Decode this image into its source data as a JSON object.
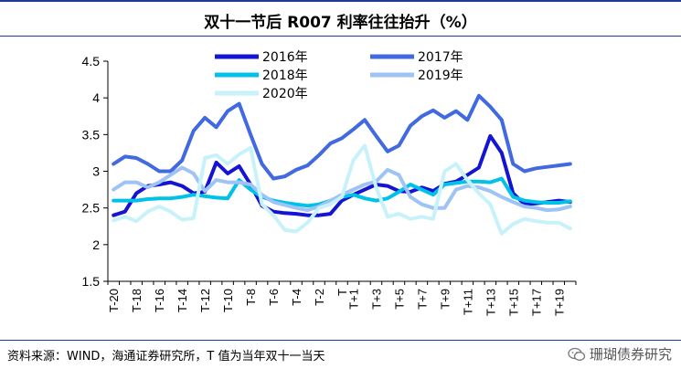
{
  "title": "双十一节后 R007 利率往往抬升（%）",
  "source": "资料来源：WIND，海通证券研究所，T 值为当年双十一当天",
  "watermark": "珊瑚债券研究",
  "chart_data": {
    "type": "line",
    "title": "双十一节后 R007 利率往往抬升（%）",
    "ylim": [
      1.5,
      4.5
    ],
    "yticks": [
      "1.5",
      "2",
      "2.5",
      "3",
      "3.5",
      "4",
      "4.5"
    ],
    "categories": [
      "T-20",
      "T-19",
      "T-18",
      "T-17",
      "T-16",
      "T-15",
      "T-14",
      "T-13",
      "T-12",
      "T-11",
      "T-10",
      "T-9",
      "T-8",
      "T-7",
      "T-6",
      "T-5",
      "T-4",
      "T-3",
      "T-2",
      "T-1",
      "T",
      "T+1",
      "T+2",
      "T+3",
      "T+4",
      "T+5",
      "T+6",
      "T+7",
      "T+8",
      "T+9",
      "T+10",
      "T+11",
      "T+12",
      "T+13",
      "T+14",
      "T+15",
      "T+16",
      "T+17",
      "T+18",
      "T+19",
      "T+20"
    ],
    "xtick_labels": [
      "T-20",
      "T-18",
      "T-16",
      "T-14",
      "T-12",
      "T-10",
      "T-8",
      "T-6",
      "T-4",
      "T-2",
      "T",
      "T+1",
      "T+3",
      "T+5",
      "T+7",
      "T+9",
      "T+11",
      "T+13",
      "T+15",
      "T+17",
      "T+19"
    ],
    "series": [
      {
        "name": "2016年",
        "color": "#1414d2",
        "width": 4,
        "values": [
          2.4,
          2.45,
          2.7,
          2.8,
          2.82,
          2.85,
          2.8,
          2.7,
          2.72,
          3.12,
          2.97,
          3.07,
          2.82,
          2.53,
          2.45,
          2.43,
          2.42,
          2.4,
          2.4,
          2.42,
          2.6,
          2.68,
          2.75,
          2.82,
          2.8,
          2.73,
          2.72,
          2.78,
          2.73,
          2.83,
          2.86,
          2.95,
          3.05,
          3.48,
          3.25,
          2.7,
          2.55,
          2.56,
          2.58,
          2.6,
          2.58
        ]
      },
      {
        "name": "2017年",
        "color": "#4169e1",
        "width": 4,
        "values": [
          3.1,
          3.2,
          3.18,
          3.1,
          3.0,
          3.0,
          3.15,
          3.55,
          3.73,
          3.6,
          3.82,
          3.92,
          3.5,
          3.1,
          2.9,
          2.93,
          3.02,
          3.08,
          3.22,
          3.38,
          3.45,
          3.57,
          3.7,
          3.48,
          3.27,
          3.35,
          3.62,
          3.75,
          3.83,
          3.73,
          3.82,
          3.7,
          4.03,
          3.88,
          3.7,
          3.1,
          3.0,
          3.04,
          3.06,
          3.08,
          3.1
        ]
      },
      {
        "name": "2018年",
        "color": "#00c2e8",
        "width": 4,
        "values": [
          2.6,
          2.6,
          2.6,
          2.62,
          2.63,
          2.63,
          2.65,
          2.68,
          2.66,
          2.64,
          2.63,
          2.88,
          2.75,
          2.65,
          2.6,
          2.57,
          2.55,
          2.53,
          2.55,
          2.6,
          2.65,
          2.68,
          2.63,
          2.6,
          2.63,
          2.72,
          2.82,
          2.75,
          2.68,
          2.82,
          2.84,
          2.86,
          2.86,
          2.85,
          2.9,
          2.65,
          2.6,
          2.58,
          2.57,
          2.57,
          2.59
        ]
      },
      {
        "name": "2019年",
        "color": "#9ec3f5",
        "width": 4,
        "values": [
          2.75,
          2.85,
          2.85,
          2.78,
          2.85,
          2.95,
          3.05,
          2.97,
          2.73,
          2.88,
          2.85,
          2.85,
          2.82,
          2.68,
          2.58,
          2.54,
          2.5,
          2.47,
          2.52,
          2.6,
          2.68,
          2.75,
          2.82,
          2.86,
          3.02,
          2.95,
          2.65,
          2.55,
          2.5,
          2.5,
          2.75,
          2.8,
          2.78,
          2.73,
          2.65,
          2.58,
          2.52,
          2.5,
          2.47,
          2.48,
          2.52
        ]
      },
      {
        "name": "2020年",
        "color": "#c8f2fa",
        "width": 4,
        "values": [
          2.33,
          2.38,
          2.32,
          2.45,
          2.52,
          2.45,
          2.34,
          2.36,
          3.18,
          3.22,
          3.1,
          3.23,
          3.32,
          2.55,
          2.4,
          2.2,
          2.18,
          2.3,
          2.5,
          2.55,
          2.65,
          3.15,
          3.35,
          2.78,
          2.38,
          2.42,
          2.35,
          2.38,
          2.35,
          3.0,
          3.1,
          2.88,
          2.7,
          2.55,
          2.15,
          2.28,
          2.35,
          2.32,
          2.3,
          2.3,
          2.22
        ]
      }
    ],
    "legend": [
      [
        {
          "name": "2016年",
          "color": "#1414d2"
        },
        {
          "name": "2017年",
          "color": "#4169e1"
        }
      ],
      [
        {
          "name": "2018年",
          "color": "#00c2e8"
        },
        {
          "name": "2019年",
          "color": "#9ec3f5"
        }
      ],
      [
        {
          "name": "2020年",
          "color": "#c8f2fa"
        }
      ]
    ]
  }
}
